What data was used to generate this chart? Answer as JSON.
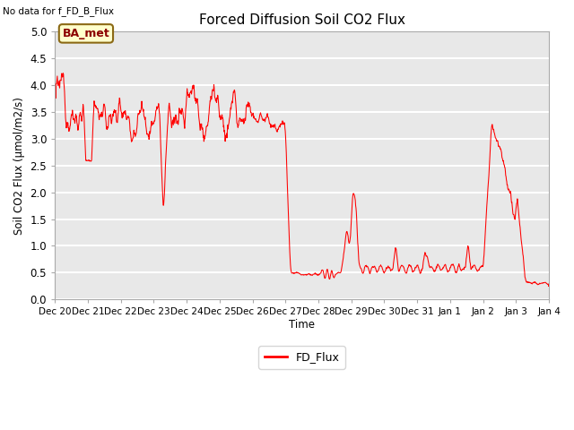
{
  "title": "Forced Diffusion Soil CO2 Flux",
  "no_data_text": "No data for f_FD_B_Flux",
  "ylabel": "Soil CO2 Flux (μmol/m2/s)",
  "xlabel": "Time",
  "legend_label": "FD_Flux",
  "line_color": "red",
  "ylim": [
    0.0,
    5.0
  ],
  "yticks": [
    0.0,
    0.5,
    1.0,
    1.5,
    2.0,
    2.5,
    3.0,
    3.5,
    4.0,
    4.5,
    5.0
  ],
  "background_color": "#e8e8e8",
  "grid_color": "white",
  "box_label": "BA_met",
  "box_facecolor": "#ffffcc",
  "box_edgecolor": "#8B6914",
  "n_days": 15,
  "xtick_labels": [
    "Dec 20",
    "Dec 21",
    "Dec 22",
    "Dec 23",
    "Dec 24",
    "Dec 25",
    "Dec 26",
    "Dec 27",
    "Dec 28",
    "Dec 29",
    "Dec 30",
    "Dec 31",
    "Jan 1",
    "Jan 2",
    "Jan 3",
    "Jan 4"
  ],
  "figsize": [
    6.4,
    4.8
  ],
  "dpi": 100
}
